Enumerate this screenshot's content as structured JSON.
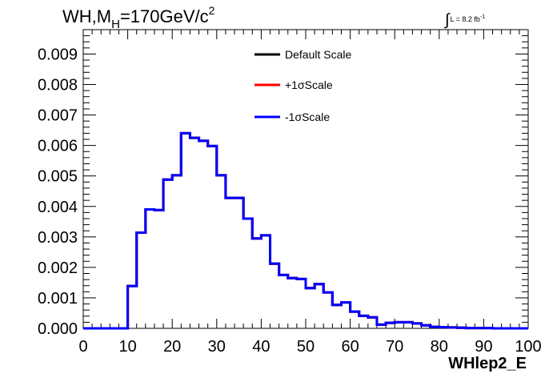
{
  "chart_data": {
    "type": "histogram",
    "title_main": "WH,M",
    "title_sub": "H",
    "title_rest": "=170GeV/c",
    "title_sup": "2",
    "lumi_text": "L = 8.2 fb",
    "lumi_sup": "-1",
    "integral_symbol": "∫",
    "xlabel": "WHlep2_E",
    "ylabel": "",
    "xlim": [
      0,
      100
    ],
    "ylim": [
      0,
      0.0098
    ],
    "x_ticks": [
      "0",
      "10",
      "20",
      "30",
      "40",
      "50",
      "60",
      "70",
      "80",
      "90",
      "100"
    ],
    "y_ticks": [
      "0.000",
      "0.001",
      "0.002",
      "0.003",
      "0.004",
      "0.005",
      "0.006",
      "0.007",
      "0.008",
      "0.009"
    ],
    "bin_width": 2,
    "bin_edges_start": 0,
    "series": [
      {
        "name": "Default Scale",
        "color": "#000000",
        "values": [
          0,
          0,
          0,
          0,
          0,
          0.00139,
          0.00314,
          0.0039,
          0.00388,
          0.00488,
          0.00502,
          0.0064,
          0.00625,
          0.00615,
          0.00598,
          0.00502,
          0.00428,
          0.00428,
          0.0036,
          0.00295,
          0.00305,
          0.00212,
          0.00175,
          0.00165,
          0.00162,
          0.00132,
          0.00145,
          0.00118,
          0.00077,
          0.00085,
          0.00055,
          0.00041,
          0.00036,
          0.00012,
          0.00018,
          0.0002,
          0.0002,
          0.00016,
          0.0001,
          5e-05,
          4e-05,
          3e-05,
          2e-05,
          1e-05,
          1e-05,
          1e-05,
          0,
          0,
          0,
          0
        ]
      },
      {
        "name": "+1σScale",
        "color": "#ff0000",
        "values": [
          0,
          0,
          0,
          0,
          0,
          0.00139,
          0.00314,
          0.0039,
          0.00388,
          0.00488,
          0.00502,
          0.0064,
          0.00625,
          0.00615,
          0.00598,
          0.00502,
          0.00428,
          0.00428,
          0.0036,
          0.00295,
          0.00305,
          0.00212,
          0.00175,
          0.00165,
          0.00162,
          0.00132,
          0.00145,
          0.00118,
          0.00077,
          0.00085,
          0.00055,
          0.00041,
          0.00036,
          0.00012,
          0.00018,
          0.0002,
          0.0002,
          0.00016,
          0.0001,
          5e-05,
          4e-05,
          3e-05,
          2e-05,
          1e-05,
          1e-05,
          1e-05,
          0,
          0,
          0,
          0
        ]
      },
      {
        "name": "-1σScale",
        "color": "#0000ff",
        "values": [
          0,
          0,
          0,
          0,
          0,
          0.00139,
          0.00314,
          0.0039,
          0.00388,
          0.00488,
          0.00502,
          0.0064,
          0.00625,
          0.00615,
          0.00598,
          0.00502,
          0.00428,
          0.00428,
          0.0036,
          0.00295,
          0.00305,
          0.00212,
          0.00175,
          0.00165,
          0.00162,
          0.00132,
          0.00145,
          0.00118,
          0.00077,
          0.00085,
          0.00055,
          0.00041,
          0.00036,
          0.00012,
          0.00018,
          0.0002,
          0.0002,
          0.00016,
          0.0001,
          5e-05,
          4e-05,
          3e-05,
          2e-05,
          1e-05,
          1e-05,
          1e-05,
          0,
          0,
          0,
          0
        ]
      }
    ],
    "legend_position": "top-right",
    "grid": false
  }
}
